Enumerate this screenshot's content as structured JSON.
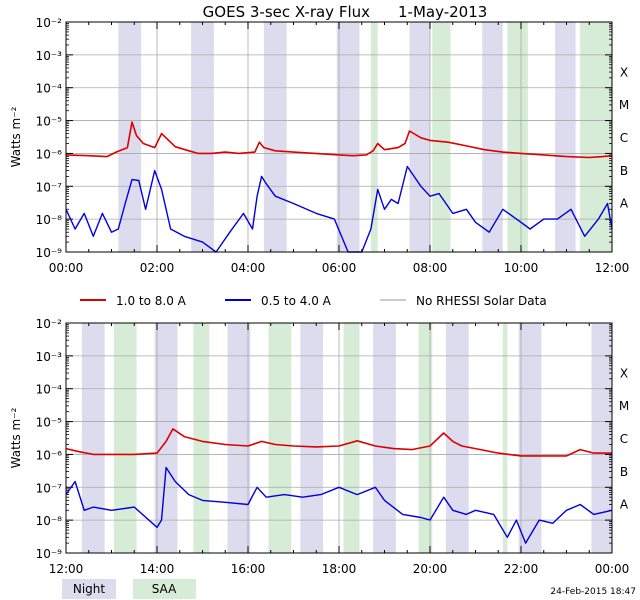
{
  "title": "GOES 3-sec X-ray Flux",
  "date": "1-May-2013",
  "footer_timestamp": "24-Feb-2015 18:47",
  "colors": {
    "long_channel": "#dd0000",
    "short_channel": "#0000dd",
    "no_rhessi": "#999999",
    "night": "#dcdcee",
    "saa": "#d6ecd6",
    "grid": "#aaaaaa"
  },
  "legend": {
    "long_label": "1.0 to 8.0 A",
    "short_label": "0.5 to 4.0 A",
    "no_rhessi_label": "No RHESSI Solar Data",
    "night_label": "Night",
    "saa_label": "SAA"
  },
  "chart_data": [
    {
      "type": "line",
      "ylabel": "Watts m⁻²",
      "yscale": "log",
      "ylim": [
        1e-09,
        0.01
      ],
      "xlim_hours": [
        0,
        12
      ],
      "x_ticks": [
        "00:00",
        "02:00",
        "04:00",
        "06:00",
        "08:00",
        "10:00",
        "12:00"
      ],
      "y_ticks": [
        "10⁻⁹",
        "10⁻⁸",
        "10⁻⁷",
        "10⁻⁶",
        "10⁻⁵",
        "10⁻⁴",
        "10⁻³",
        "10⁻²"
      ],
      "flare_classes": [
        "A",
        "B",
        "C",
        "M",
        "X"
      ],
      "night_hours": [
        [
          1.15,
          1.65
        ],
        [
          2.75,
          3.25
        ],
        [
          4.35,
          4.85
        ],
        [
          5.95,
          6.45
        ],
        [
          7.55,
          8.0
        ],
        [
          9.15,
          9.6
        ],
        [
          10.75,
          11.2
        ]
      ],
      "saa_hours": [
        [
          6.7,
          6.85
        ],
        [
          8.05,
          8.45
        ],
        [
          9.7,
          10.15
        ],
        [
          11.3,
          12.0
        ]
      ],
      "series": [
        {
          "name": "1.0 to 8.0 A",
          "channel": "long",
          "x": [
            0,
            0.5,
            0.9,
            1.1,
            1.35,
            1.45,
            1.55,
            1.7,
            1.95,
            2.1,
            2.4,
            2.7,
            2.9,
            3.2,
            3.5,
            3.8,
            4.15,
            4.25,
            4.35,
            4.6,
            5.0,
            6.0,
            6.3,
            6.6,
            6.75,
            6.85,
            7.0,
            7.3,
            7.45,
            7.55,
            7.8,
            8.0,
            8.4,
            8.8,
            9.2,
            9.6,
            10.0,
            10.5,
            11.0,
            11.5,
            11.8,
            12.0
          ],
          "y": [
            9e-07,
            8.5e-07,
            8e-07,
            1.1e-06,
            1.5e-06,
            9e-06,
            3.5e-06,
            2e-06,
            1.5e-06,
            4e-06,
            1.6e-06,
            1.2e-06,
            1e-06,
            1e-06,
            1.1e-06,
            1e-06,
            1.1e-06,
            2.2e-06,
            1.5e-06,
            1.2e-06,
            1.1e-06,
            9e-07,
            8.5e-07,
            9e-07,
            1.2e-06,
            2e-06,
            1.3e-06,
            1.5e-06,
            2e-06,
            4.8e-06,
            3e-06,
            2.5e-06,
            2.2e-06,
            1.7e-06,
            1.3e-06,
            1.1e-06,
            1e-06,
            9e-07,
            8e-07,
            7.5e-07,
            8e-07,
            8.5e-07
          ]
        },
        {
          "name": "0.5 to 4.0 A",
          "channel": "short",
          "x": [
            0,
            0.2,
            0.4,
            0.6,
            0.8,
            1.0,
            1.15,
            1.3,
            1.45,
            1.6,
            1.75,
            1.95,
            2.1,
            2.3,
            2.6,
            3.0,
            3.3,
            3.6,
            3.9,
            4.1,
            4.2,
            4.3,
            4.4,
            4.6,
            5.0,
            5.5,
            5.9,
            6.2,
            6.5,
            6.7,
            6.85,
            7.0,
            7.15,
            7.3,
            7.5,
            7.65,
            7.8,
            8.0,
            8.2,
            8.5,
            8.8,
            9.0,
            9.3,
            9.6,
            9.9,
            10.2,
            10.5,
            10.8,
            11.1,
            11.4,
            11.7,
            11.9,
            12.0
          ],
          "y": [
            2e-08,
            5e-09,
            1.5e-08,
            3e-09,
            1.5e-08,
            4e-09,
            5e-09,
            3e-08,
            1.6e-07,
            1.5e-07,
            2e-08,
            3e-07,
            8e-08,
            5e-09,
            3e-09,
            2e-09,
            1e-09,
            4e-09,
            1.5e-08,
            5e-09,
            5e-08,
            2e-07,
            1.2e-07,
            5e-08,
            3e-08,
            1.5e-08,
            1e-08,
            1e-09,
            1e-09,
            5e-09,
            8e-08,
            2e-08,
            4e-08,
            3e-08,
            4e-07,
            2e-07,
            1e-07,
            5e-08,
            6e-08,
            1.5e-08,
            2e-08,
            8e-09,
            4e-09,
            2e-08,
            1e-08,
            5e-09,
            1e-08,
            1e-08,
            2e-08,
            3e-09,
            1e-08,
            3e-08,
            5e-09
          ]
        }
      ]
    },
    {
      "type": "line",
      "ylabel": "Watts m⁻²",
      "yscale": "log",
      "ylim": [
        1e-09,
        0.01
      ],
      "xlim_hours": [
        12,
        24
      ],
      "x_ticks": [
        "12:00",
        "14:00",
        "16:00",
        "18:00",
        "20:00",
        "22:00",
        "00:00"
      ],
      "y_ticks": [
        "10⁻⁹",
        "10⁻⁸",
        "10⁻⁷",
        "10⁻⁶",
        "10⁻⁵",
        "10⁻⁴",
        "10⁻³",
        "10⁻²"
      ],
      "flare_classes": [
        "A",
        "B",
        "C",
        "M",
        "X"
      ],
      "night_hours": [
        [
          12.35,
          12.85
        ],
        [
          13.95,
          14.45
        ],
        [
          15.55,
          16.05
        ],
        [
          17.15,
          17.65
        ],
        [
          18.75,
          19.25
        ],
        [
          20.35,
          20.85
        ],
        [
          21.95,
          22.45
        ],
        [
          23.55,
          24.0
        ]
      ],
      "saa_hours": [
        [
          13.05,
          13.55
        ],
        [
          14.8,
          15.15
        ],
        [
          16.45,
          16.95
        ],
        [
          18.1,
          18.45
        ],
        [
          19.75,
          20.05
        ],
        [
          21.6,
          21.7
        ]
      ],
      "series": [
        {
          "name": "1.0 to 8.0 A",
          "channel": "long",
          "x": [
            12.0,
            12.3,
            12.6,
            13.0,
            13.5,
            14.0,
            14.2,
            14.35,
            14.6,
            15.0,
            15.5,
            16.0,
            16.3,
            16.6,
            17.0,
            17.5,
            18.0,
            18.4,
            18.8,
            19.2,
            19.6,
            20.0,
            20.3,
            20.5,
            20.7,
            21.0,
            21.5,
            22.0,
            22.5,
            23.0,
            23.3,
            23.6,
            24.0
          ],
          "y": [
            1.5e-06,
            1.2e-06,
            1e-06,
            1e-06,
            1e-06,
            1.1e-06,
            2.5e-06,
            6e-06,
            3.5e-06,
            2.5e-06,
            2e-06,
            1.8e-06,
            2.5e-06,
            2e-06,
            1.8e-06,
            1.7e-06,
            1.8e-06,
            2.6e-06,
            1.8e-06,
            1.5e-06,
            1.4e-06,
            1.8e-06,
            4.5e-06,
            2.5e-06,
            1.8e-06,
            1.5e-06,
            1.1e-06,
            9e-07,
            9e-07,
            9e-07,
            1.4e-06,
            1.1e-06,
            1.1e-06
          ]
        },
        {
          "name": "0.5 to 4.0 A",
          "channel": "short",
          "x": [
            12.0,
            12.2,
            12.4,
            12.6,
            13.0,
            13.5,
            13.9,
            14.0,
            14.1,
            14.2,
            14.4,
            14.7,
            15.0,
            15.5,
            16.0,
            16.2,
            16.4,
            16.8,
            17.2,
            17.6,
            18.0,
            18.4,
            18.8,
            19.0,
            19.4,
            19.8,
            20.0,
            20.3,
            20.5,
            20.8,
            21.0,
            21.4,
            21.7,
            21.9,
            22.1,
            22.4,
            22.7,
            23.0,
            23.3,
            23.6,
            24.0
          ],
          "y": [
            6e-08,
            1.5e-07,
            2e-08,
            2.5e-08,
            2e-08,
            2.5e-08,
            8e-09,
            6e-09,
            1e-08,
            4e-07,
            1.5e-07,
            6e-08,
            4e-08,
            3.5e-08,
            3e-08,
            1e-07,
            5e-08,
            6e-08,
            5e-08,
            6e-08,
            1e-07,
            6e-08,
            1e-07,
            4e-08,
            1.5e-08,
            1.2e-08,
            1e-08,
            5e-08,
            2e-08,
            1.5e-08,
            2e-08,
            1.5e-08,
            3e-09,
            1e-08,
            2e-09,
            1e-08,
            8e-09,
            2e-08,
            3e-08,
            1.5e-08,
            2e-08
          ]
        }
      ]
    }
  ]
}
